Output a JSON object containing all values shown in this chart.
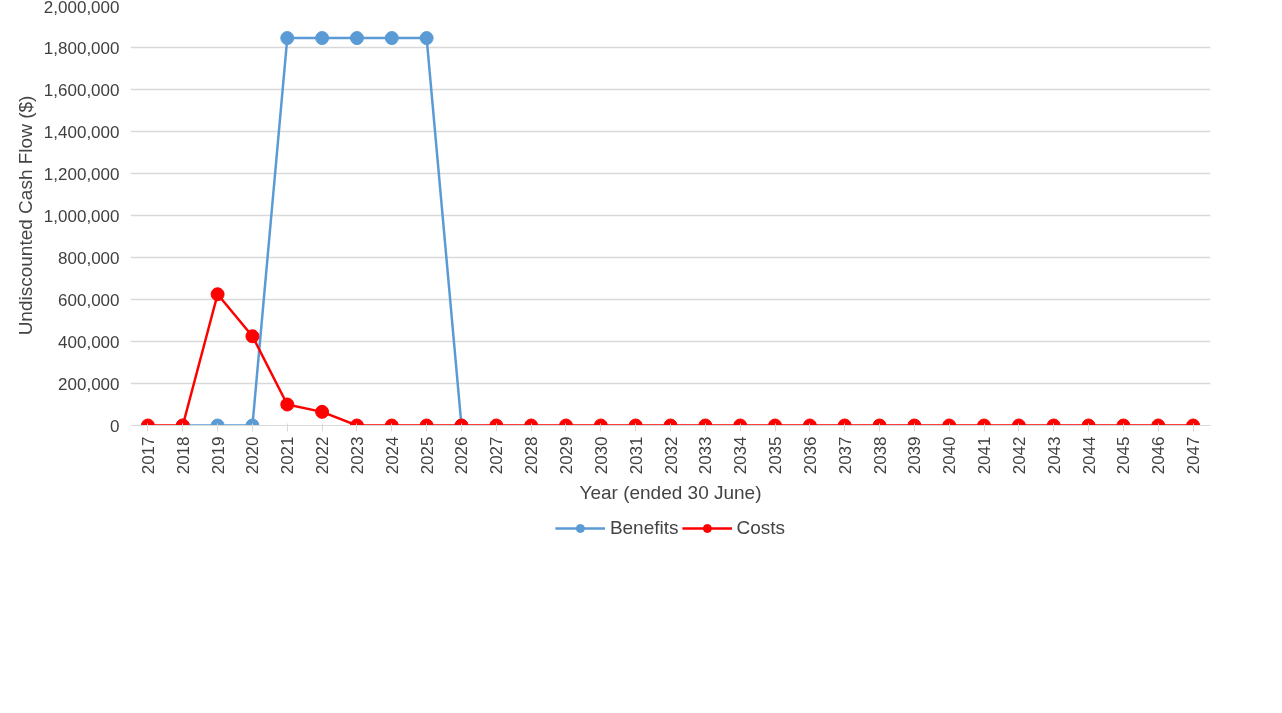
{
  "chart_data": {
    "type": "line",
    "xlabel": "Year (ended 30 June)",
    "ylabel": "Undiscounted Cash Flow ($)",
    "categories": [
      "2017",
      "2018",
      "2019",
      "2020",
      "2021",
      "2022",
      "2023",
      "2024",
      "2025",
      "2026",
      "2027",
      "2028",
      "2029",
      "2030",
      "2031",
      "2032",
      "2033",
      "2034",
      "2035",
      "2036",
      "2037",
      "2038",
      "2039",
      "2040",
      "2041",
      "2042",
      "2043",
      "2044",
      "2045",
      "2046",
      "2047"
    ],
    "series": [
      {
        "name": "Benefits",
        "color": "#5b9bd5",
        "values": [
          null,
          0,
          0,
          0,
          1845000,
          1845000,
          1845000,
          1845000,
          1845000,
          0,
          null,
          null,
          null,
          null,
          null,
          null,
          null,
          null,
          null,
          null,
          null,
          null,
          null,
          null,
          null,
          null,
          null,
          null,
          null,
          null,
          null
        ]
      },
      {
        "name": "Costs",
        "color": "#ff0000",
        "values": [
          0,
          0,
          625000,
          425000,
          100000,
          65000,
          0,
          0,
          0,
          0,
          0,
          0,
          0,
          0,
          0,
          0,
          0,
          0,
          0,
          0,
          0,
          0,
          0,
          0,
          0,
          0,
          0,
          0,
          0,
          0,
          0
        ]
      }
    ],
    "ylim": [
      0,
      2000000
    ],
    "yticks": [
      {
        "value": 0,
        "label": "0"
      },
      {
        "value": 200000,
        "label": "200,000"
      },
      {
        "value": 400000,
        "label": "400,000"
      },
      {
        "value": 600000,
        "label": "600,000"
      },
      {
        "value": 800000,
        "label": "800,000"
      },
      {
        "value": 1000000,
        "label": "1,000,000"
      },
      {
        "value": 1200000,
        "label": "1,200,000"
      },
      {
        "value": 1400000,
        "label": "1,400,000"
      },
      {
        "value": 1600000,
        "label": "1,600,000"
      },
      {
        "value": 1800000,
        "label": "1,800,000"
      },
      {
        "value": 2000000,
        "label": "2,000,000"
      }
    ],
    "grid": "y",
    "legend": "bottom",
    "marker": "circle",
    "line_style": "solid"
  }
}
